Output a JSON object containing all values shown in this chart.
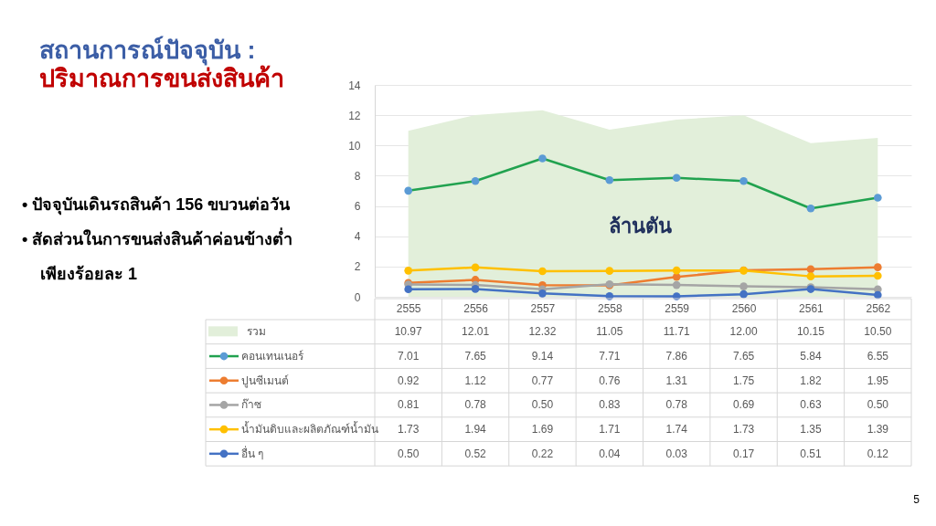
{
  "chart_data": {
    "type": "line",
    "title": "สถานการณ์ปัจจุบัน :",
    "subtitle": "ปริมาณการขนส่งสินค้า",
    "ylabel": "ล้านตัน",
    "annotations": [
      "• ปัจจุบันเดินรถสินค้า 156 ขบวนต่อวัน",
      "• สัดส่วนในการขนส่งสินค้าค่อนข้างต่ำ\nเพียงร้อยละ 1",
      "5"
    ],
    "categories": [
      "2555",
      "2556",
      "2557",
      "2558",
      "2559",
      "2560",
      "2561",
      "2562"
    ],
    "series": [
      {
        "name": "รวม",
        "type": "area",
        "marker": "none",
        "color": "#e2efda",
        "values": [
          10.97,
          12.01,
          12.32,
          11.05,
          11.71,
          12.0,
          10.15,
          10.5
        ],
        "value_labels": [
          "10.97",
          "12.01",
          "12.32",
          "11.05",
          "11.71",
          "12.00",
          "10.15",
          "10.50"
        ]
      },
      {
        "name": "คอนเทนเนอร์",
        "color": "#21a24f",
        "colors": [
          "#5b9bd5",
          "#5b9bd5",
          "#5b9bd5",
          "#5b9bd5",
          "#5b9bd5",
          "#5b9bd5",
          "#5b9bd5",
          "#5b9bd5"
        ],
        "values": [
          7.01,
          7.65,
          9.14,
          7.71,
          7.86,
          7.65,
          5.84,
          6.55
        ],
        "value_labels": [
          "7.01",
          "7.65",
          "9.14",
          "7.71",
          "7.86",
          "7.65",
          "5.84",
          "6.55"
        ]
      },
      {
        "name": "ปูนซีเมนต์",
        "color": "#ed7d31",
        "values": [
          0.92,
          1.12,
          0.77,
          0.76,
          1.31,
          1.75,
          1.82,
          1.95
        ],
        "value_labels": [
          "0.92",
          "1.12",
          "0.77",
          "0.76",
          "1.31",
          "1.75",
          "1.82",
          "1.95"
        ]
      },
      {
        "name": "ก๊าซ",
        "color": "#a5a5a5",
        "values": [
          0.81,
          0.78,
          0.5,
          0.83,
          0.78,
          0.69,
          0.63,
          0.5
        ],
        "value_labels": [
          "0.81",
          "0.78",
          "0.50",
          "0.83",
          "0.78",
          "0.69",
          "0.63",
          "0.50"
        ]
      },
      {
        "name": "น้ำมันดิบและผลิตภัณฑ์น้ำมัน",
        "color": "#ffc000",
        "values": [
          1.73,
          1.94,
          1.69,
          1.71,
          1.74,
          1.73,
          1.35,
          1.39
        ],
        "value_labels": [
          "1.73",
          "1.94",
          "1.69",
          "1.71",
          "1.74",
          "1.73",
          "1.35",
          "1.39"
        ]
      },
      {
        "name": "อื่น ๆ",
        "color": "#4472c4",
        "values": [
          0.5,
          0.52,
          0.22,
          0.04,
          0.03,
          0.17,
          0.51,
          0.12
        ],
        "value_labels": [
          "0.50",
          "0.52",
          "0.22",
          "0.04",
          "0.03",
          "0.17",
          "0.51",
          "0.12"
        ]
      }
    ],
    "ylim": [
      0,
      14
    ],
    "yticks": [
      0,
      2,
      4,
      6,
      8,
      10,
      12,
      14
    ],
    "grid": "y",
    "legend": "bottom",
    "marker": "circle"
  }
}
